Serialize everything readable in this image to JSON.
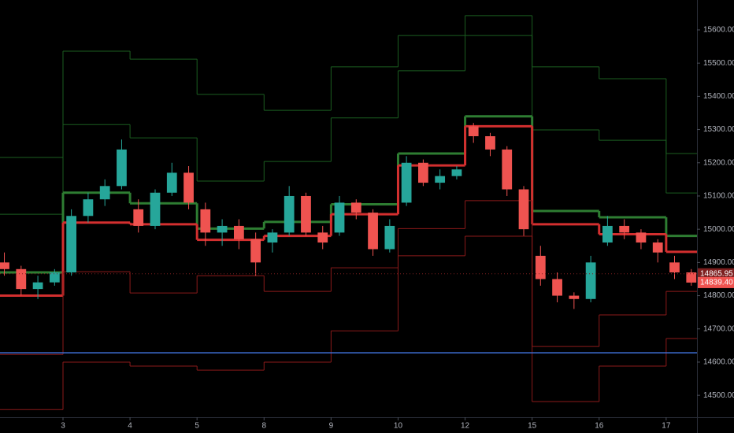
{
  "chart_data": {
    "type": "candlestick",
    "xlim": [
      0.06,
      10.46
    ],
    "xticks": [
      {
        "value": 1,
        "label": "3"
      },
      {
        "value": 2,
        "label": "4"
      },
      {
        "value": 3,
        "label": "5"
      },
      {
        "value": 4,
        "label": "8"
      },
      {
        "value": 5,
        "label": "9"
      },
      {
        "value": 6,
        "label": "10"
      },
      {
        "value": 7,
        "label": "12"
      },
      {
        "value": 8,
        "label": "15"
      },
      {
        "value": 9,
        "label": "16"
      },
      {
        "value": 10,
        "label": "17"
      }
    ],
    "ylim": [
      14434,
      15690
    ],
    "yticks": [
      {
        "value": 14500,
        "label": "14500.00"
      },
      {
        "value": 14600,
        "label": "14600.00"
      },
      {
        "value": 14700,
        "label": "14700.00"
      },
      {
        "value": 14800,
        "label": "14800.00"
      },
      {
        "value": 14900,
        "label": "14900.00"
      },
      {
        "value": 15000,
        "label": "15000.00"
      },
      {
        "value": 15100,
        "label": "15100.00"
      },
      {
        "value": 15200,
        "label": "15200.00"
      },
      {
        "value": 15300,
        "label": "15300.00"
      },
      {
        "value": 15400,
        "label": "15400.00"
      },
      {
        "value": 15500,
        "label": "15500.00"
      },
      {
        "value": 15600,
        "label": "15600.00"
      }
    ],
    "up_color": "#26a69a",
    "down_color": "#ef5350",
    "x": [
      0.125,
      0.375,
      0.625,
      0.875,
      1.125,
      1.375,
      1.625,
      1.875,
      2.125,
      2.375,
      2.625,
      2.875,
      3.125,
      3.375,
      3.625,
      3.875,
      4.125,
      4.375,
      4.625,
      4.875,
      5.125,
      5.375,
      5.625,
      5.875,
      6.125,
      6.375,
      6.625,
      6.875,
      7.125,
      7.375,
      7.625,
      7.875,
      8.125,
      8.375,
      8.625,
      8.875,
      9.125,
      9.375,
      9.625,
      9.875,
      10.125,
      10.375
    ],
    "open": [
      14900,
      14880,
      14820,
      14840,
      14870,
      15040,
      15090,
      15130,
      15060,
      15010,
      15110,
      15170,
      15060,
      14990,
      15010,
      14970,
      14960,
      14990,
      15100,
      14990,
      14990,
      15080,
      15050,
      14940,
      15080,
      15200,
      15140,
      15160,
      15310,
      15280,
      15240,
      15120,
      14920,
      14850,
      14800,
      14790,
      14960,
      15010,
      14990,
      14960,
      14900,
      14870
    ],
    "high": [
      14930,
      14890,
      14860,
      14880,
      15060,
      15110,
      15150,
      15270,
      15090,
      15120,
      15200,
      15190,
      15080,
      15030,
      15030,
      14990,
      15000,
      15130,
      15110,
      15010,
      15100,
      15090,
      15060,
      15030,
      15220,
      15210,
      15180,
      15190,
      15320,
      15290,
      15250,
      15130,
      14950,
      14870,
      14810,
      14920,
      15040,
      15030,
      15000,
      14970,
      14920,
      14880
    ],
    "low": [
      14860,
      14800,
      14790,
      14830,
      14860,
      15020,
      15070,
      15120,
      14990,
      15000,
      15100,
      15060,
      14950,
      14950,
      14940,
      14860,
      14930,
      14980,
      14980,
      14940,
      14980,
      15030,
      14920,
      14930,
      15070,
      15130,
      15120,
      15150,
      15260,
      15220,
      15100,
      14980,
      14830,
      14780,
      14760,
      14780,
      14950,
      14970,
      14940,
      14900,
      14850,
      14830
    ],
    "close": [
      14880,
      14820,
      14840,
      14870,
      15040,
      15090,
      15130,
      15240,
      15010,
      15110,
      15170,
      15080,
      14990,
      15010,
      14970,
      14900,
      14990,
      15100,
      14990,
      14960,
      15080,
      15050,
      14940,
      15010,
      15200,
      15140,
      15160,
      15180,
      15280,
      15240,
      15120,
      15000,
      14850,
      14800,
      14790,
      14900,
      15010,
      14990,
      14960,
      14930,
      14870,
      14839.4
    ],
    "level_x": [
      0,
      1,
      2,
      3,
      4,
      5,
      6,
      7,
      8,
      9,
      10
    ],
    "levels": [
      {
        "color": "#1b5e20",
        "width": 1,
        "values": [
          15216,
          15536,
          15512,
          15406,
          15358,
          15489,
          15583,
          15643,
          15489,
          15453,
          15228
        ]
      },
      {
        "color": "#1b5e20",
        "width": 1,
        "values": [
          15045,
          15315,
          15275,
          15145,
          15204,
          15335,
          15477,
          15583,
          15299,
          15268,
          15109
        ]
      },
      {
        "color": "#2e7d32",
        "width": 3,
        "values": [
          14870,
          15110,
          15078,
          15002,
          15022,
          15075,
          15228,
          15340,
          15055,
          15036,
          14980
        ]
      },
      {
        "color": "#d32f2f",
        "width": 3,
        "values": [
          14800,
          15020,
          15015,
          14968,
          14980,
          15045,
          15192,
          15310,
          15015,
          14985,
          14932
        ]
      },
      {
        "color": "#8b1a1a",
        "width": 1,
        "values": [
          14623,
          14872,
          14808,
          14860,
          14813,
          14884,
          15002,
          15086,
          14647,
          14742,
          14813
        ]
      },
      {
        "color": "#8b1a1a",
        "width": 1,
        "values": [
          14457,
          14600,
          14588,
          14576,
          14600,
          14694,
          14920,
          14979,
          14481,
          14588,
          14671
        ]
      }
    ],
    "hline": {
      "value": 14628,
      "color": "#3f6fd8"
    },
    "price_labels": [
      {
        "value": 14865.95,
        "label": "14865.95",
        "color": "#7d1f1f"
      },
      {
        "value": 14839.4,
        "label": "14839.40",
        "color": "#ef5350"
      }
    ]
  }
}
